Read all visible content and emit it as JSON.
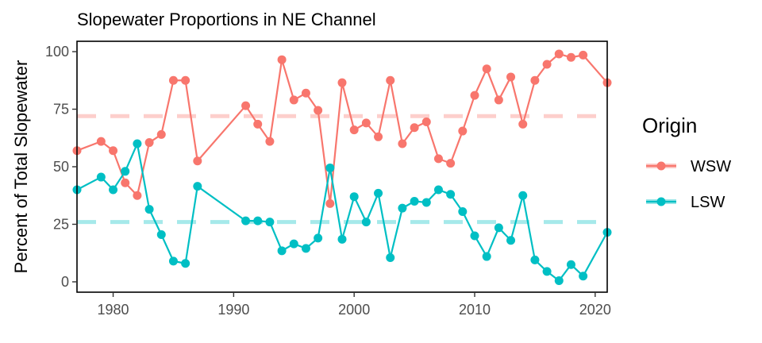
{
  "chart_data": {
    "type": "line",
    "title": "Slopewater Proportions in NE Channel",
    "xlabel": "",
    "ylabel": "Percent of Total Slopewater",
    "xlim": [
      1977,
      2021
    ],
    "ylim": [
      -4.5,
      104.5
    ],
    "x_ticks": [
      1980,
      1990,
      2000,
      2010,
      2020
    ],
    "y_ticks": [
      0,
      25,
      50,
      75,
      100
    ],
    "grid": false,
    "legend": {
      "title": "Origin",
      "position": "right"
    },
    "series": [
      {
        "name": "WSW",
        "color": "#F8766D",
        "mean_line": 72,
        "points": [
          [
            1977,
            57
          ],
          [
            1979,
            61
          ],
          [
            1980,
            57
          ],
          [
            1981,
            43
          ],
          [
            1982,
            37.5
          ],
          [
            1983,
            60.5
          ],
          [
            1984,
            64
          ],
          [
            1985,
            87.5
          ],
          [
            1986,
            87.5
          ],
          [
            1987,
            52.5
          ],
          [
            1991,
            76.5
          ],
          [
            1992,
            68.5
          ],
          [
            1993,
            61
          ],
          [
            1994,
            96.5
          ],
          [
            1995,
            79
          ],
          [
            1996,
            82
          ],
          [
            1997,
            74.5
          ],
          [
            1998,
            34
          ],
          [
            1999,
            86.5
          ],
          [
            2000,
            66
          ],
          [
            2001,
            69
          ],
          [
            2002,
            63
          ],
          [
            2003,
            87.5
          ],
          [
            2004,
            60
          ],
          [
            2005,
            67
          ],
          [
            2006,
            69.5
          ],
          [
            2007,
            53.5
          ],
          [
            2008,
            51.5
          ],
          [
            2009,
            65.5
          ],
          [
            2010,
            81
          ],
          [
            2011,
            92.5
          ],
          [
            2012,
            79
          ],
          [
            2013,
            89
          ],
          [
            2014,
            68.5
          ],
          [
            2015,
            87.5
          ],
          [
            2016,
            94.5
          ],
          [
            2017,
            99
          ],
          [
            2018,
            97.5
          ],
          [
            2019,
            98.5
          ],
          [
            2021,
            86.5
          ]
        ]
      },
      {
        "name": "LSW",
        "color": "#00BFC4",
        "mean_line": 26,
        "points": [
          [
            1977,
            40
          ],
          [
            1979,
            45.5
          ],
          [
            1980,
            40
          ],
          [
            1981,
            48
          ],
          [
            1982,
            60
          ],
          [
            1983,
            31.5
          ],
          [
            1984,
            20.5
          ],
          [
            1985,
            9
          ],
          [
            1986,
            8
          ],
          [
            1987,
            41.5
          ],
          [
            1991,
            26.5
          ],
          [
            1992,
            26.5
          ],
          [
            1993,
            26
          ],
          [
            1994,
            13.5
          ],
          [
            1995,
            16.5
          ],
          [
            1996,
            14.5
          ],
          [
            1997,
            19
          ],
          [
            1998,
            49.5
          ],
          [
            1999,
            18.5
          ],
          [
            2000,
            37
          ],
          [
            2001,
            26
          ],
          [
            2002,
            38.5
          ],
          [
            2003,
            10.5
          ],
          [
            2004,
            32
          ],
          [
            2005,
            35
          ],
          [
            2006,
            34.5
          ],
          [
            2007,
            40
          ],
          [
            2008,
            38
          ],
          [
            2009,
            30.5
          ],
          [
            2010,
            20
          ],
          [
            2011,
            11
          ],
          [
            2012,
            23.5
          ],
          [
            2013,
            18
          ],
          [
            2014,
            37.5
          ],
          [
            2015,
            9.5
          ],
          [
            2016,
            4.5
          ],
          [
            2017,
            0.5
          ],
          [
            2018,
            7.5
          ],
          [
            2019,
            2.5
          ],
          [
            2021,
            21.5
          ]
        ]
      }
    ]
  }
}
